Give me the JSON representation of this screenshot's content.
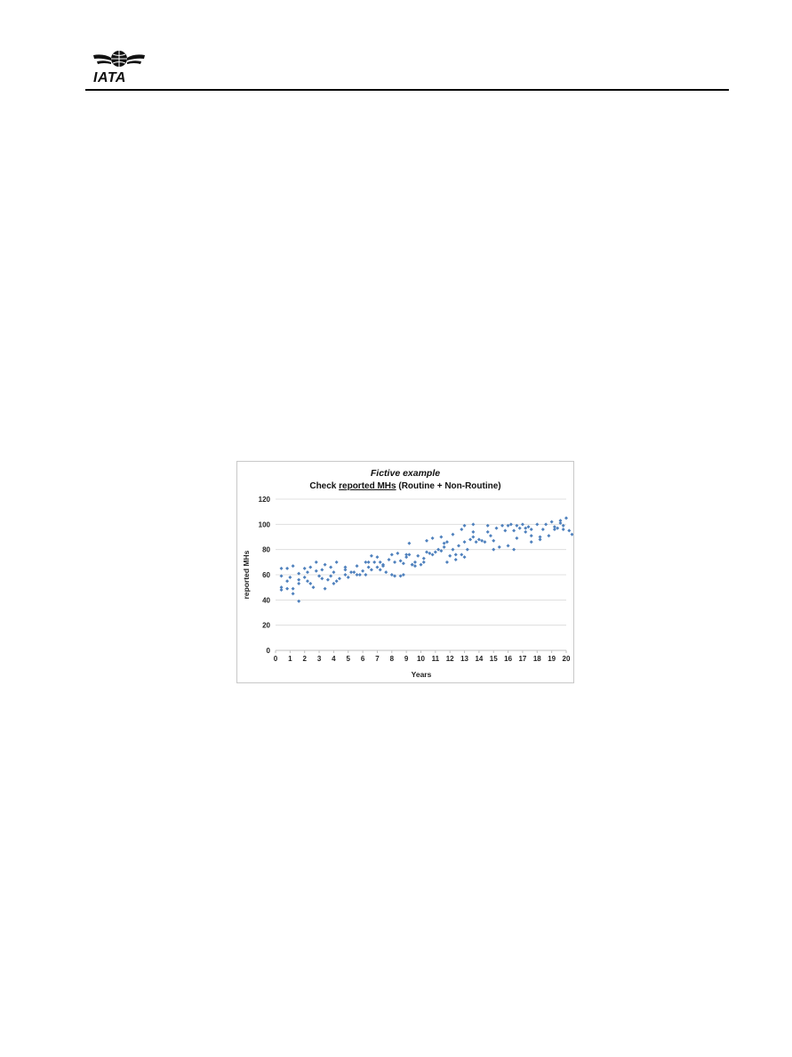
{
  "header": {
    "logo_text": "IATA",
    "rule_color": "#000000"
  },
  "chart_data": {
    "type": "scatter",
    "title": "Fictive example",
    "subtitle": {
      "prefix": "Check ",
      "underlined": "reported MHs",
      "suffix": " (Routine + Non-Routine)"
    },
    "xlabel": "Years",
    "ylabel": "reported MHs",
    "xlim": [
      0,
      20
    ],
    "ylim": [
      0,
      120
    ],
    "x_ticks": [
      0,
      1,
      2,
      3,
      4,
      5,
      6,
      7,
      8,
      9,
      10,
      11,
      12,
      13,
      14,
      15,
      16,
      17,
      18,
      19,
      20
    ],
    "y_ticks": [
      0,
      20,
      40,
      60,
      80,
      100,
      120
    ],
    "grid": "horizontal",
    "legend": "none",
    "marker_color": "#4f81bd",
    "series": [
      {
        "points": [
          [
            0.4,
            50
          ],
          [
            0.4,
            48
          ],
          [
            0.4,
            59
          ],
          [
            0.4,
            65
          ],
          [
            0.8,
            65
          ],
          [
            0.8,
            55
          ],
          [
            0.8,
            49
          ],
          [
            1.0,
            58
          ],
          [
            1.2,
            67
          ],
          [
            1.2,
            49
          ],
          [
            1.2,
            45
          ],
          [
            1.6,
            39
          ],
          [
            1.6,
            53
          ],
          [
            1.6,
            56
          ],
          [
            1.6,
            61
          ],
          [
            2.0,
            65
          ],
          [
            2.0,
            58
          ],
          [
            2.2,
            55
          ],
          [
            2.2,
            62
          ],
          [
            2.4,
            66
          ],
          [
            2.4,
            53
          ],
          [
            2.6,
            50
          ],
          [
            2.8,
            63
          ],
          [
            2.8,
            70
          ],
          [
            3.0,
            59
          ],
          [
            3.2,
            57
          ],
          [
            3.2,
            64
          ],
          [
            3.4,
            68
          ],
          [
            3.4,
            49
          ],
          [
            3.6,
            56
          ],
          [
            3.8,
            66
          ],
          [
            3.8,
            59
          ],
          [
            4.0,
            53
          ],
          [
            4.0,
            62
          ],
          [
            4.2,
            70
          ],
          [
            4.2,
            55
          ],
          [
            4.4,
            57
          ],
          [
            4.8,
            64
          ],
          [
            4.8,
            60
          ],
          [
            4.8,
            66
          ],
          [
            5.0,
            58
          ],
          [
            5.2,
            62
          ],
          [
            5.4,
            62
          ],
          [
            5.6,
            60
          ],
          [
            5.6,
            67
          ],
          [
            5.8,
            60
          ],
          [
            6.0,
            63
          ],
          [
            6.2,
            60
          ],
          [
            6.2,
            70
          ],
          [
            6.4,
            66
          ],
          [
            6.4,
            70
          ],
          [
            6.6,
            64
          ],
          [
            6.6,
            75
          ],
          [
            6.8,
            70
          ],
          [
            7.0,
            66
          ],
          [
            7.0,
            74
          ],
          [
            7.2,
            70
          ],
          [
            7.2,
            64
          ],
          [
            7.4,
            67
          ],
          [
            7.4,
            68
          ],
          [
            7.6,
            62
          ],
          [
            7.8,
            72
          ],
          [
            8.0,
            76
          ],
          [
            8.0,
            60
          ],
          [
            8.2,
            59
          ],
          [
            8.2,
            70
          ],
          [
            8.4,
            77
          ],
          [
            8.6,
            59
          ],
          [
            8.6,
            71
          ],
          [
            8.8,
            60
          ],
          [
            8.8,
            69
          ],
          [
            9.0,
            74
          ],
          [
            9.0,
            76
          ],
          [
            9.2,
            85
          ],
          [
            9.2,
            76
          ],
          [
            9.4,
            68
          ],
          [
            9.4,
            68
          ],
          [
            9.6,
            70
          ],
          [
            9.6,
            67
          ],
          [
            9.8,
            75
          ],
          [
            10.0,
            68
          ],
          [
            10.2,
            70
          ],
          [
            10.2,
            73
          ],
          [
            10.4,
            78
          ],
          [
            10.4,
            87
          ],
          [
            10.6,
            77
          ],
          [
            10.8,
            89
          ],
          [
            10.8,
            76
          ],
          [
            11.0,
            78
          ],
          [
            11.2,
            80
          ],
          [
            11.4,
            90
          ],
          [
            11.4,
            79
          ],
          [
            11.6,
            82
          ],
          [
            11.6,
            85
          ],
          [
            11.8,
            86
          ],
          [
            11.8,
            70
          ],
          [
            12.0,
            75
          ],
          [
            12.2,
            80
          ],
          [
            12.2,
            92
          ],
          [
            12.4,
            72
          ],
          [
            12.4,
            76
          ],
          [
            12.6,
            83
          ],
          [
            12.8,
            96
          ],
          [
            12.8,
            76
          ],
          [
            13.0,
            74
          ],
          [
            13.0,
            86
          ],
          [
            13.0,
            99
          ],
          [
            13.2,
            80
          ],
          [
            13.4,
            88
          ],
          [
            13.6,
            90
          ],
          [
            13.6,
            94
          ],
          [
            13.6,
            100
          ],
          [
            13.8,
            86
          ],
          [
            14.0,
            88
          ],
          [
            14.2,
            87
          ],
          [
            14.4,
            86
          ],
          [
            14.6,
            94
          ],
          [
            14.6,
            99
          ],
          [
            14.8,
            91
          ],
          [
            15.0,
            87
          ],
          [
            15.0,
            80
          ],
          [
            15.2,
            97
          ],
          [
            15.4,
            82
          ],
          [
            15.6,
            99
          ],
          [
            15.8,
            95
          ],
          [
            16.0,
            99
          ],
          [
            16.0,
            83
          ],
          [
            16.2,
            100
          ],
          [
            16.4,
            80
          ],
          [
            16.4,
            95
          ],
          [
            16.6,
            99
          ],
          [
            16.6,
            89
          ],
          [
            16.8,
            97
          ],
          [
            17.0,
            100
          ],
          [
            17.2,
            94
          ],
          [
            17.2,
            97
          ],
          [
            17.4,
            98
          ],
          [
            17.6,
            86
          ],
          [
            17.6,
            91
          ],
          [
            17.6,
            96
          ],
          [
            18.0,
            100
          ],
          [
            18.2,
            88
          ],
          [
            18.2,
            90
          ],
          [
            18.4,
            96
          ],
          [
            18.6,
            100
          ],
          [
            18.8,
            91
          ],
          [
            19.0,
            102
          ],
          [
            19.2,
            96
          ],
          [
            19.2,
            98
          ],
          [
            19.4,
            97
          ],
          [
            19.6,
            101
          ],
          [
            19.6,
            103
          ],
          [
            19.8,
            99
          ],
          [
            19.8,
            96
          ],
          [
            20.0,
            105
          ],
          [
            20.2,
            95
          ],
          [
            20.4,
            92
          ],
          [
            20.6,
            97
          ],
          [
            20.6,
            100
          ],
          [
            20.8,
            90
          ]
        ]
      }
    ]
  }
}
